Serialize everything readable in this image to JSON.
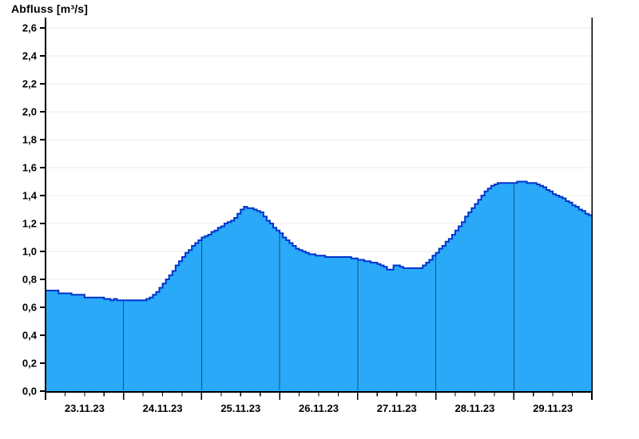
{
  "title": "Abfluss [m³/s]",
  "chart_data": {
    "type": "area",
    "title": "Abfluss [m³/s]",
    "ylabel": "Abfluss [m³/s]",
    "unit": "m³/s",
    "ylim": [
      0.0,
      2.6
    ],
    "y_tick_step": 0.2,
    "y_tick_labels": [
      "0,0",
      "0,2",
      "0,4",
      "0,6",
      "0,8",
      "1,0",
      "1,2",
      "1,4",
      "1,6",
      "1,8",
      "2,0",
      "2,2",
      "2,4",
      "2,6"
    ],
    "x_day_labels": [
      "23.11.23",
      "24.11.23",
      "25.11.23",
      "26.11.23",
      "27.11.23",
      "28.11.23",
      "29.11.23"
    ],
    "x_minor_tick_hours": 6,
    "hours_per_point": 1,
    "grid": "horizontal-light, vertical day dividers inside area only",
    "legend": "none",
    "interpolation": "step-after",
    "series": [
      {
        "name": "Abfluss",
        "values": [
          0.72,
          0.72,
          0.72,
          0.72,
          0.7,
          0.7,
          0.7,
          0.7,
          0.69,
          0.69,
          0.69,
          0.69,
          0.67,
          0.67,
          0.67,
          0.67,
          0.67,
          0.67,
          0.66,
          0.66,
          0.65,
          0.66,
          0.65,
          0.65,
          0.65,
          0.65,
          0.65,
          0.65,
          0.65,
          0.65,
          0.65,
          0.66,
          0.67,
          0.69,
          0.71,
          0.74,
          0.77,
          0.8,
          0.83,
          0.86,
          0.9,
          0.93,
          0.96,
          0.99,
          1.01,
          1.04,
          1.06,
          1.08,
          1.1,
          1.11,
          1.12,
          1.14,
          1.15,
          1.17,
          1.18,
          1.2,
          1.21,
          1.22,
          1.24,
          1.27,
          1.3,
          1.32,
          1.31,
          1.31,
          1.3,
          1.29,
          1.28,
          1.25,
          1.22,
          1.2,
          1.17,
          1.15,
          1.13,
          1.1,
          1.08,
          1.06,
          1.04,
          1.02,
          1.01,
          1.0,
          0.99,
          0.98,
          0.98,
          0.97,
          0.97,
          0.97,
          0.96,
          0.96,
          0.96,
          0.96,
          0.96,
          0.96,
          0.96,
          0.96,
          0.95,
          0.95,
          0.94,
          0.94,
          0.93,
          0.93,
          0.92,
          0.92,
          0.91,
          0.9,
          0.89,
          0.87,
          0.87,
          0.9,
          0.9,
          0.89,
          0.88,
          0.88,
          0.88,
          0.88,
          0.88,
          0.88,
          0.9,
          0.92,
          0.94,
          0.97,
          0.99,
          1.02,
          1.04,
          1.07,
          1.09,
          1.12,
          1.15,
          1.18,
          1.21,
          1.25,
          1.28,
          1.31,
          1.34,
          1.37,
          1.4,
          1.43,
          1.45,
          1.47,
          1.48,
          1.49,
          1.49,
          1.49,
          1.49,
          1.49,
          1.49,
          1.5,
          1.5,
          1.5,
          1.49,
          1.49,
          1.49,
          1.48,
          1.47,
          1.46,
          1.44,
          1.43,
          1.41,
          1.4,
          1.39,
          1.38,
          1.36,
          1.35,
          1.33,
          1.32,
          1.3,
          1.29,
          1.27,
          1.26,
          1.25
        ]
      }
    ],
    "colors": {
      "fill": "#29A9F8",
      "line": "#0033CC",
      "grid": "#EBEBEB",
      "day_divider": "rgba(0,0,0,0.5)",
      "axis": "#000000",
      "background": "#FFFFFF",
      "text": "#000000"
    }
  }
}
